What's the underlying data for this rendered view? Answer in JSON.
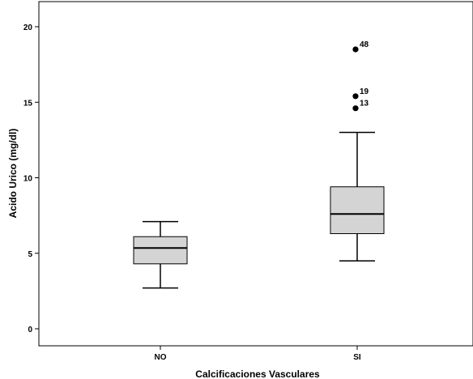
{
  "chart_data": {
    "type": "boxplot",
    "xlabel": "Calcificaciones Vasculares",
    "ylabel": "Acido Urico (mg/dl)",
    "ylim": [
      -1,
      21
    ],
    "yticks": [
      0,
      5,
      10,
      15,
      20
    ],
    "ytick_labels": [
      "0",
      "5",
      "10",
      "15",
      "20"
    ],
    "grid": false,
    "box_color": "#d4d4d4",
    "categories": [
      "NO",
      "SI"
    ],
    "boxes": [
      {
        "category": "NO",
        "whisker_low": 2.7,
        "q1": 4.3,
        "median": 5.35,
        "q3": 6.1,
        "whisker_high": 7.1,
        "outliers": []
      },
      {
        "category": "SI",
        "whisker_low": 4.5,
        "q1": 6.3,
        "median": 7.6,
        "q3": 9.4,
        "whisker_high": 13.0,
        "outliers": [
          {
            "label": "48",
            "value": 18.5
          },
          {
            "label": "19",
            "value": 15.4
          },
          {
            "label": "13",
            "value": 14.6
          }
        ]
      }
    ]
  }
}
